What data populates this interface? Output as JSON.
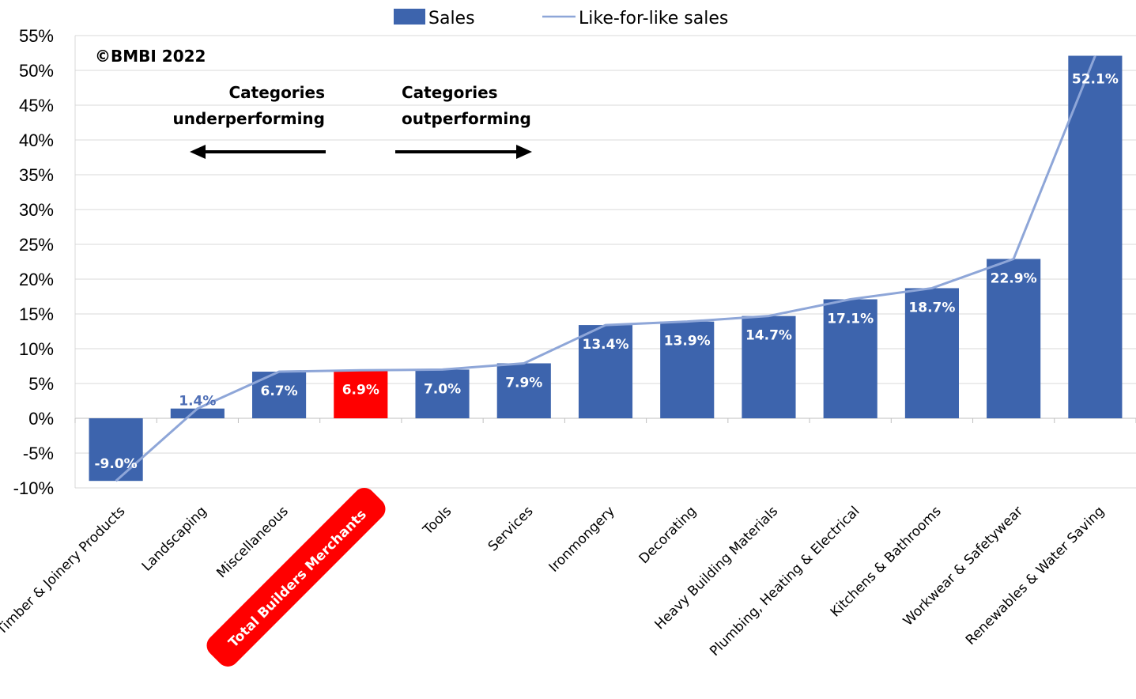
{
  "chart_data": {
    "type": "bar",
    "categories": [
      "Timber & Joinery Products",
      "Landscaping",
      "Miscellaneous",
      "Total Builders Merchants",
      "Tools",
      "Services",
      "Ironmongery",
      "Decorating",
      "Heavy Building Materials",
      "Plumbing, Heating & Electrical",
      "Kitchens & Bathrooms",
      "Workwear & Safetywear",
      "Renewables & Water Saving"
    ],
    "highlight_category": "Total Builders Merchants",
    "series": [
      {
        "name": "Sales",
        "type": "bar",
        "color": "#3d64ad",
        "highlight_color": "#ff0000",
        "values": [
          -9.0,
          1.4,
          6.7,
          6.9,
          7.0,
          7.9,
          13.4,
          13.9,
          14.7,
          17.1,
          18.7,
          22.9,
          52.1
        ],
        "data_labels": [
          "-9.0%",
          "1.4%",
          "6.7%",
          "6.9%",
          "7.0%",
          "7.9%",
          "13.4%",
          "13.9%",
          "14.7%",
          "17.1%",
          "18.7%",
          "22.9%",
          "52.1%"
        ]
      },
      {
        "name": "Like-for-like sales",
        "type": "line",
        "color": "#8ea6d8",
        "values": [
          -9.0,
          1.4,
          6.7,
          6.9,
          7.0,
          7.9,
          13.4,
          13.9,
          14.7,
          17.1,
          18.7,
          22.9,
          52.1
        ]
      }
    ],
    "ylim": [
      -10,
      55
    ],
    "yticks": [
      "55%",
      "50%",
      "45%",
      "40%",
      "35%",
      "30%",
      "25%",
      "20%",
      "15%",
      "10%",
      "5%",
      "0%",
      "-5%",
      "-10%"
    ],
    "grid": true,
    "legend_position": "top",
    "annotations": {
      "copyright": "©BMBI 2022",
      "left_line1": "Categories",
      "left_line2": "underperforming",
      "right_line1": "Categories",
      "right_line2": "outperforming"
    }
  }
}
